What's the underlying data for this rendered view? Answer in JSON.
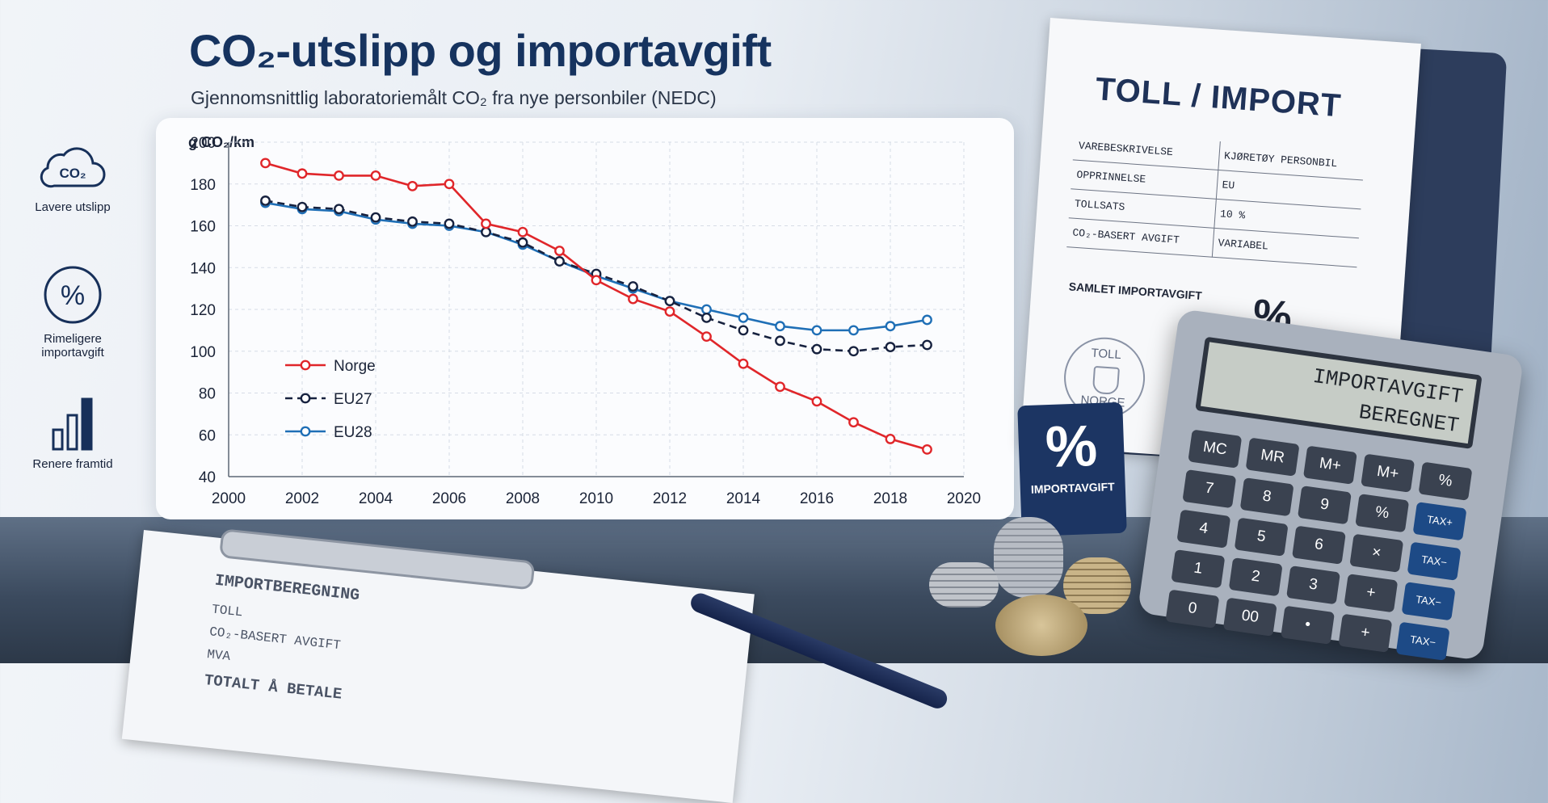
{
  "header": {
    "title": "CO₂-utslipp og importavgift",
    "subtitle": "Gjennomsnittlig laboratoriemålt CO₂ fra nye personbiler (NEDC)"
  },
  "side_items": [
    {
      "icon": "cloud-co2-icon",
      "icon_text": "CO₂",
      "label": "Lavere utslipp"
    },
    {
      "icon": "percent-circle-icon",
      "icon_text": "%",
      "label": "Rimeligere importavgift"
    },
    {
      "icon": "bar-chart-icon",
      "label": "Renere framtid"
    }
  ],
  "chart_data": {
    "type": "line",
    "title": "",
    "ylabel": "g CO₂/km",
    "xlabel": "",
    "xlim": [
      2000,
      2020
    ],
    "ylim": [
      40,
      200
    ],
    "x_ticks": [
      2000,
      2002,
      2004,
      2006,
      2008,
      2010,
      2012,
      2014,
      2016,
      2018,
      2020
    ],
    "y_ticks": [
      40,
      60,
      80,
      100,
      120,
      140,
      160,
      180,
      200
    ],
    "grid": true,
    "legend_position": "lower-left",
    "x": [
      2001,
      2002,
      2003,
      2004,
      2005,
      2006,
      2007,
      2008,
      2009,
      2010,
      2011,
      2012,
      2013,
      2014,
      2015,
      2016,
      2017,
      2018,
      2019
    ],
    "series": [
      {
        "name": "Norge",
        "color": "#e0262a",
        "style": "solid",
        "values": [
          190,
          185,
          184,
          184,
          179,
          180,
          161,
          157,
          148,
          134,
          125,
          119,
          107,
          94,
          83,
          76,
          66,
          58,
          53
        ]
      },
      {
        "name": "EU27",
        "color": "#17223f",
        "style": "dashed",
        "values": [
          172,
          169,
          168,
          164,
          162,
          161,
          157,
          152,
          143,
          137,
          131,
          124,
          116,
          110,
          105,
          101,
          100,
          102,
          103
        ]
      },
      {
        "name": "EU28",
        "color": "#1f6fb6",
        "style": "solid",
        "values": [
          171,
          168,
          167,
          163,
          161,
          160,
          157,
          151,
          143,
          136,
          130,
          124,
          120,
          116,
          112,
          110,
          110,
          112,
          115
        ]
      }
    ]
  },
  "customs_doc": {
    "title": "TOLL / IMPORT",
    "rows": [
      {
        "label": "VAREBESKRIVELSE",
        "value": "KJØRETØY PERSONBIL"
      },
      {
        "label": "OPPRINNELSE",
        "value": "EU"
      },
      {
        "label": "TOLLSATS",
        "value": "10 %"
      },
      {
        "label": "CO₂-BASERT AVGIFT",
        "value": "VARIABEL"
      }
    ],
    "total_label": "SAMLET IMPORTAVGIFT",
    "total_value": "%",
    "stamp_top": "TOLL",
    "stamp_bottom": "NORGE"
  },
  "badge": {
    "symbol": "%",
    "label": "IMPORTAVGIFT"
  },
  "calculator": {
    "display_line1": "IMPORTAVGIFT",
    "display_line2": "BEREGNET",
    "keys": [
      "MC",
      "MR",
      "M+",
      "M+",
      "%",
      "7",
      "8",
      "9",
      "%",
      "TAX+",
      "4",
      "5",
      "6",
      "×",
      "TAX−",
      "1",
      "2",
      "3",
      "+",
      "TAX−",
      "0",
      "00",
      "•",
      "+",
      "TAX−"
    ]
  },
  "clipboard": {
    "heading": "IMPORTBEREGNING",
    "lines": [
      "TOLL",
      "CO₂-BASERT AVGIFT",
      "MVA",
      "TOTALT Å BETALE"
    ]
  }
}
